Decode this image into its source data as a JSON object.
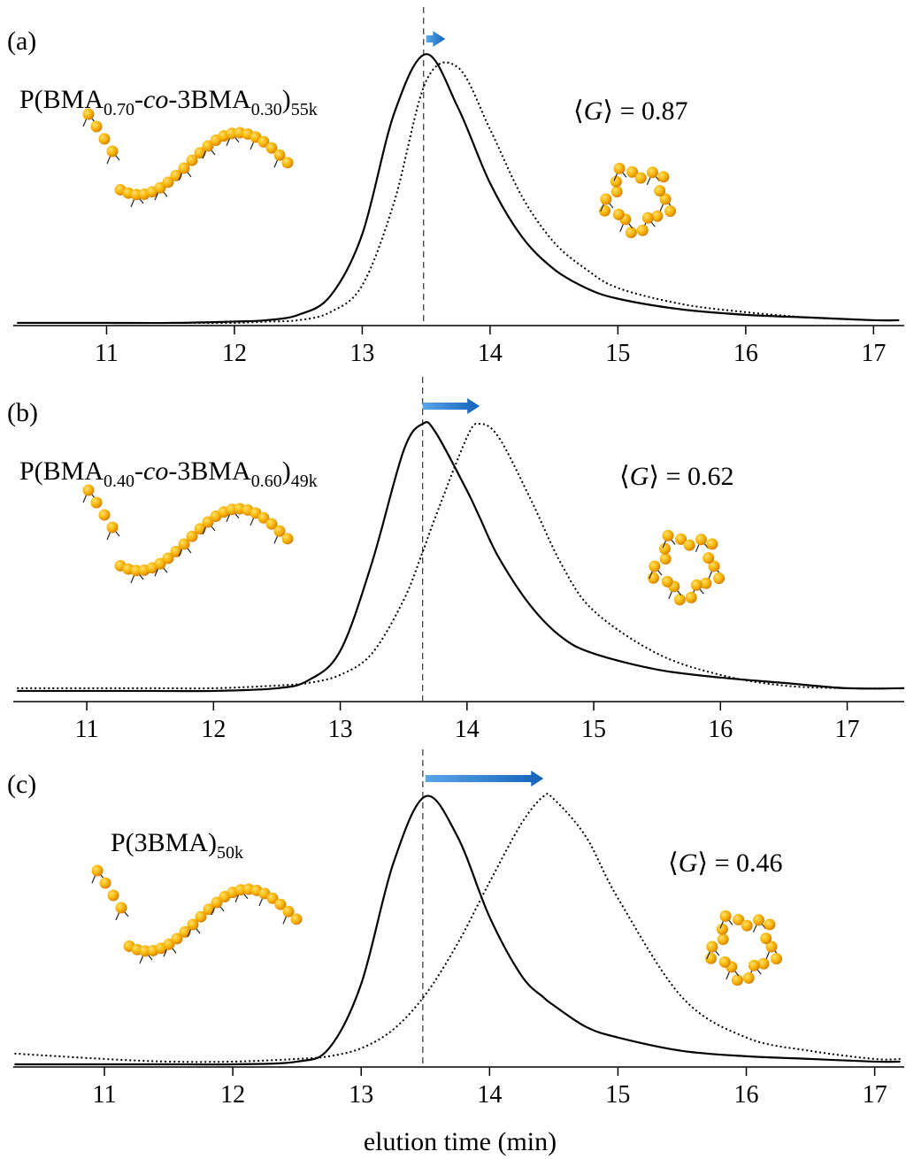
{
  "chart_data": [
    {
      "type": "line",
      "panel_label": "(a)",
      "label_parts": [
        {
          "text": "P(BMA"
        },
        {
          "text": "0.70",
          "style": "sub"
        },
        {
          "text": "-"
        },
        {
          "text": "co",
          "style": "italic"
        },
        {
          "text": "-3BMA"
        },
        {
          "text": "0.30",
          "style": "sub"
        },
        {
          "text": ")"
        },
        {
          "text": "55k",
          "style": "sub"
        }
      ],
      "g_parts": [
        {
          "text": "⟨"
        },
        {
          "text": "G",
          "style": "italic"
        },
        {
          "text": "⟩ = 0.87"
        }
      ],
      "vline": 13.48,
      "arrow": [
        13.5,
        13.65
      ],
      "arrow_color": "#1f74c9",
      "xlim": [
        10.27,
        17.24
      ],
      "ylim": [
        -0.01,
        1.05
      ],
      "xticks": [
        11,
        12,
        13,
        14,
        15,
        16,
        17
      ],
      "x": [
        10.3,
        10.5,
        11,
        11.5,
        12,
        12.25,
        12.5,
        12.75,
        13,
        13.25,
        13.5,
        13.75,
        14,
        14.25,
        14.5,
        14.75,
        15,
        15.5,
        16,
        16.5,
        17,
        17.2
      ],
      "series": [
        {
          "color": "#000000",
          "line_style": "solid",
          "values": [
            0,
            0,
            0,
            0,
            0.005,
            0.01,
            0.03,
            0.1,
            0.33,
            0.78,
            1.0,
            0.8,
            0.52,
            0.32,
            0.2,
            0.13,
            0.09,
            0.05,
            0.03,
            0.02,
            0.01,
            0.01
          ]
        },
        {
          "color": "#000000",
          "line_style": "dotted",
          "values": [
            0,
            0,
            0,
            0,
            0,
            0.005,
            0.01,
            0.04,
            0.14,
            0.45,
            0.9,
            0.95,
            0.72,
            0.47,
            0.3,
            0.2,
            0.13,
            0.07,
            0.04,
            0.02,
            0.01,
            0.01
          ]
        }
      ]
    },
    {
      "type": "line",
      "panel_label": "(b)",
      "label_parts": [
        {
          "text": "P(BMA"
        },
        {
          "text": "0.40",
          "style": "sub"
        },
        {
          "text": "-"
        },
        {
          "text": "co",
          "style": "italic"
        },
        {
          "text": "-3BMA"
        },
        {
          "text": "0.60",
          "style": "sub"
        },
        {
          "text": ")"
        },
        {
          "text": "49k",
          "style": "sub"
        }
      ],
      "g_parts": [
        {
          "text": "⟨"
        },
        {
          "text": "G",
          "style": "italic"
        },
        {
          "text": "⟩ = 0.62"
        }
      ],
      "vline": 13.65,
      "arrow": [
        13.65,
        14.1
      ],
      "arrow_color": "#1f74c9",
      "xlim": [
        10.42,
        17.45
      ],
      "ylim": [
        -0.04,
        1.05
      ],
      "xticks": [
        11,
        12,
        13,
        14,
        15,
        16,
        17
      ],
      "x": [
        10.45,
        11,
        11.5,
        12,
        12.5,
        12.75,
        13,
        13.25,
        13.5,
        13.65,
        13.75,
        14,
        14.1,
        14.25,
        14.5,
        14.75,
        15,
        15.5,
        16,
        16.5,
        17,
        17.45
      ],
      "series": [
        {
          "color": "#000000",
          "line_style": "solid",
          "values": [
            0,
            0,
            0,
            0,
            0.01,
            0.04,
            0.15,
            0.48,
            0.9,
            1.0,
            0.97,
            0.75,
            0.65,
            0.5,
            0.32,
            0.2,
            0.14,
            0.08,
            0.05,
            0.03,
            0.01,
            0.01
          ]
        },
        {
          "color": "#000000",
          "line_style": "dotted",
          "values": [
            0.01,
            0.01,
            0.01,
            0.01,
            0.02,
            0.03,
            0.06,
            0.14,
            0.34,
            0.52,
            0.65,
            0.95,
            1.0,
            0.95,
            0.72,
            0.47,
            0.3,
            0.14,
            0.06,
            0.02,
            0.01,
            0.01
          ]
        }
      ]
    },
    {
      "type": "line",
      "panel_label": "(c)",
      "label_parts": [
        {
          "text": "P(3BMA)"
        },
        {
          "text": "50k",
          "style": "sub"
        }
      ],
      "g_parts": [
        {
          "text": "⟨"
        },
        {
          "text": "G",
          "style": "italic"
        },
        {
          "text": "⟩ = 0.46"
        }
      ],
      "vline": 13.48,
      "arrow": [
        13.5,
        14.42
      ],
      "arrow_color": "#1f74c9",
      "xlabel": "elution time (min)",
      "xlim": [
        10.29,
        17.23
      ],
      "ylim": [
        -0.01,
        1.05
      ],
      "xticks": [
        11,
        12,
        13,
        14,
        15,
        16,
        17
      ],
      "x": [
        10.3,
        11,
        11.5,
        12,
        12.5,
        12.75,
        13,
        13.25,
        13.5,
        13.75,
        14,
        14.25,
        14.42,
        14.5,
        14.75,
        15,
        15.5,
        16,
        16.5,
        17,
        17.2
      ],
      "series": [
        {
          "color": "#000000",
          "line_style": "solid",
          "values": [
            0,
            0,
            0,
            0,
            0.01,
            0.06,
            0.3,
            0.75,
            1.0,
            0.85,
            0.55,
            0.33,
            0.25,
            0.22,
            0.14,
            0.1,
            0.05,
            0.03,
            0.02,
            0.01,
            0.01
          ]
        },
        {
          "color": "#000000",
          "line_style": "dotted",
          "values": [
            0.04,
            0.02,
            0.01,
            0.01,
            0.02,
            0.03,
            0.06,
            0.13,
            0.26,
            0.45,
            0.68,
            0.9,
            1.0,
            0.99,
            0.85,
            0.62,
            0.25,
            0.1,
            0.05,
            0.02,
            0.02
          ]
        }
      ]
    }
  ]
}
